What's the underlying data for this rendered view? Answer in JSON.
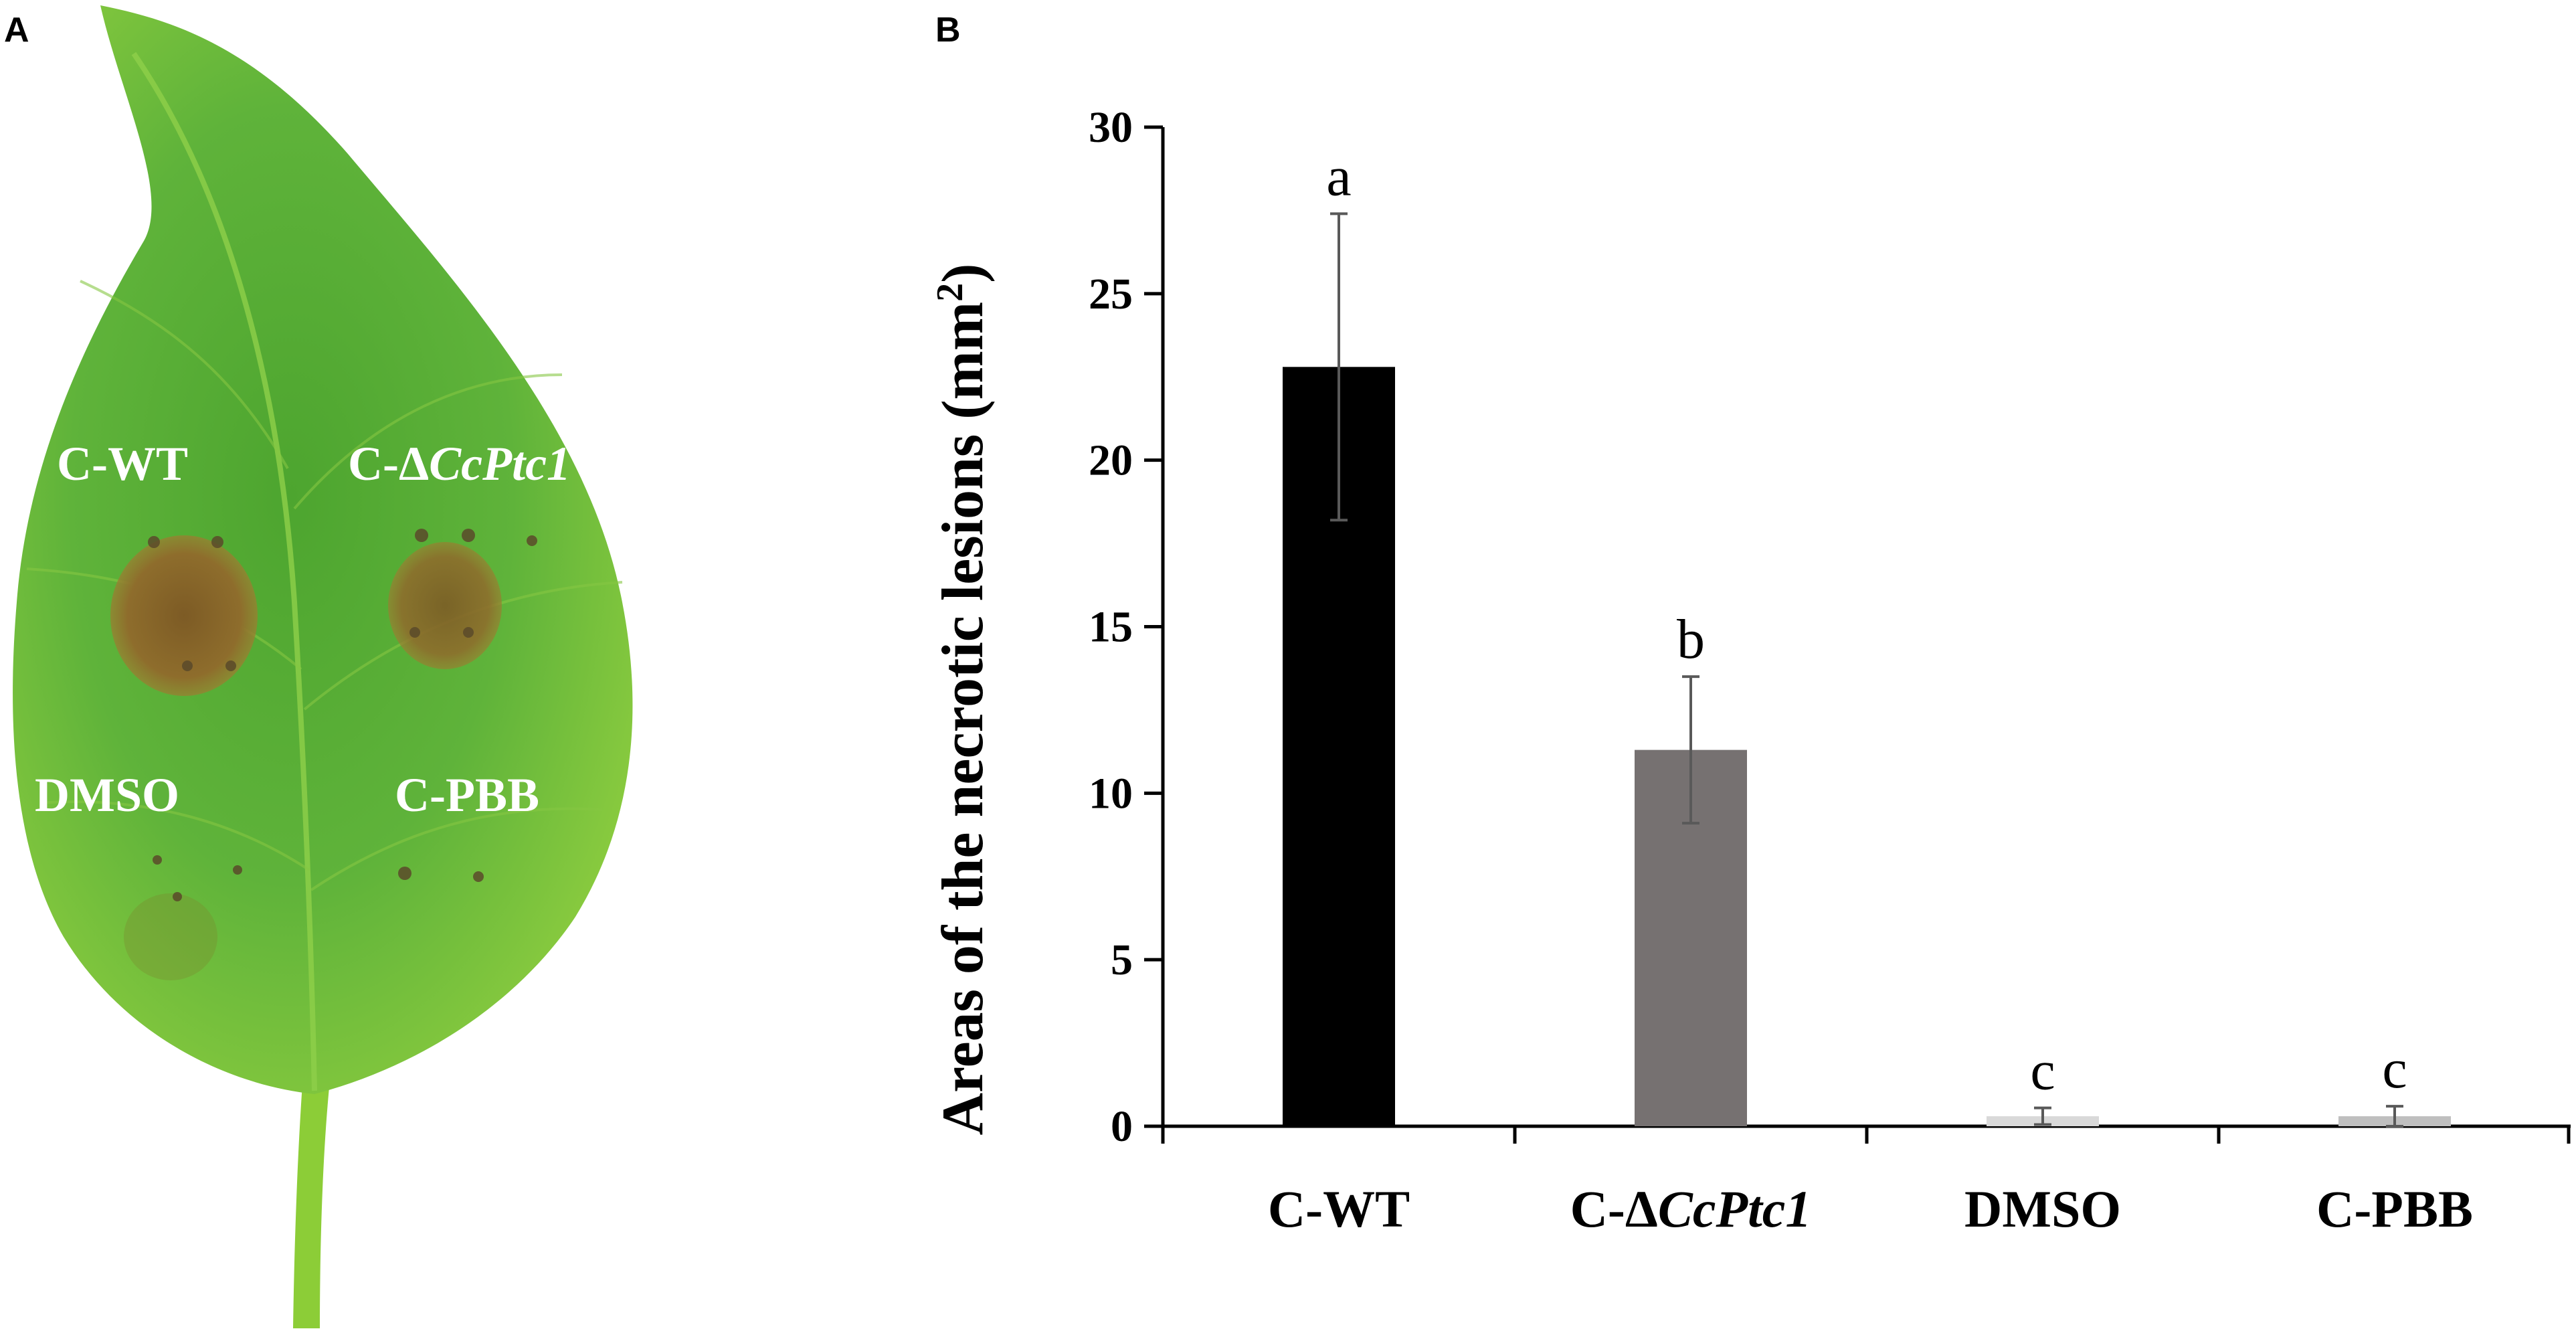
{
  "panels": {
    "a_letter": "A",
    "b_letter": "B"
  },
  "leaf": {
    "labels": {
      "c_wt": "C-WT",
      "c_delta_prefix": "C-Δ",
      "c_delta_gene": "CcPtc1",
      "dmso": "DMSO",
      "c_pbb": "C-PBB"
    },
    "colors": {
      "leaf_green": "#5fb33a",
      "lesion_brown": "#8b6a2c"
    }
  },
  "chart_data": {
    "type": "bar",
    "ylabel_main": "Areas of the necrotic lesions (mm",
    "ylabel_sup": "2",
    "ylabel_close": ")",
    "ylim": [
      0,
      30
    ],
    "yticks": [
      0,
      5,
      10,
      15,
      20,
      25,
      30
    ],
    "categories": [
      {
        "prefix": "C-WT",
        "italic": ""
      },
      {
        "prefix": "C-Δ",
        "italic": "CcPtc1"
      },
      {
        "prefix": "DMSO",
        "italic": ""
      },
      {
        "prefix": "C-PBB",
        "italic": ""
      }
    ],
    "values": [
      22.8,
      11.3,
      0.3,
      0.3
    ],
    "errors": [
      4.6,
      2.2,
      0.25,
      0.3
    ],
    "significance": [
      "a",
      "b",
      "c",
      "c"
    ],
    "bar_colors": [
      "#000000",
      "#767171",
      "#d9d9d9",
      "#bfbfbf"
    ],
    "error_color": "#595959"
  }
}
